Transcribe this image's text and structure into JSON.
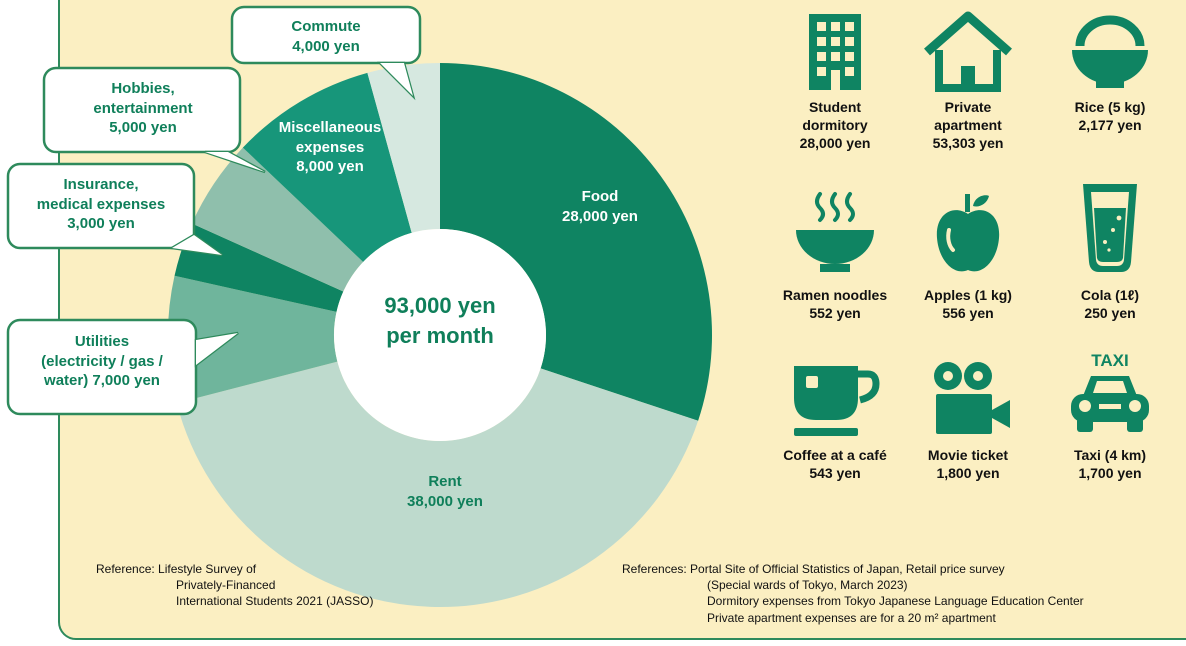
{
  "chart_data": {
    "type": "pie",
    "center_text": [
      "93,000 yen",
      "per month"
    ],
    "slices": [
      {
        "name": "Food",
        "value_label": "28,000 yen",
        "value": 28000,
        "color": "#0f8462"
      },
      {
        "name": "Rent",
        "value_label": "38,000 yen",
        "value": 38000,
        "color": "#bedacd"
      },
      {
        "name": "Utilities (electricity / gas / water)",
        "value_label": "7,000 yen",
        "value": 7000,
        "color": "#6fb59c"
      },
      {
        "name": "Insurance, medical expenses",
        "value_label": "3,000 yen",
        "value": 3000,
        "color": "#0f8462"
      },
      {
        "name": "Hobbies, entertainment",
        "value_label": "5,000 yen",
        "value": 5000,
        "color": "#8fbfac"
      },
      {
        "name": "Miscellaneous expenses",
        "value_label": "8,000 yen",
        "value": 8000,
        "color": "#17967a"
      },
      {
        "name": "Commute",
        "value_label": "4,000 yen",
        "value": 4000,
        "color": "#d6e8e0"
      }
    ]
  },
  "labels": {
    "food": [
      "Food",
      "28,000 yen"
    ],
    "rent": [
      "Rent",
      "38,000 yen"
    ],
    "misc": [
      "Miscellaneous",
      "expenses",
      "8,000 yen"
    ],
    "commute": [
      "Commute",
      "4,000 yen"
    ],
    "hobbies": [
      "Hobbies,",
      "entertainment",
      "5,000 yen"
    ],
    "insurance": [
      "Insurance,",
      "medical expenses",
      "3,000 yen"
    ],
    "utilities": [
      "Utilities",
      "(electricity / gas /",
      "water) 7,000 yen"
    ]
  },
  "prices": [
    {
      "icon": "building-icon",
      "lines": [
        "Student",
        "dormitory",
        "28,000 yen"
      ]
    },
    {
      "icon": "house-icon",
      "lines": [
        "Private",
        "apartment",
        "53,303 yen"
      ]
    },
    {
      "icon": "rice-bowl-icon",
      "lines": [
        "Rice (5 kg)",
        "2,177 yen"
      ]
    },
    {
      "icon": "ramen-bowl-icon",
      "lines": [
        "Ramen noodles",
        "552 yen"
      ]
    },
    {
      "icon": "apple-icon",
      "lines": [
        "Apples (1 kg)",
        "556 yen"
      ]
    },
    {
      "icon": "cola-glass-icon",
      "lines": [
        "Cola (1ℓ)",
        "250 yen"
      ]
    },
    {
      "icon": "coffee-cup-icon",
      "lines": [
        "Coffee at a café",
        "543 yen"
      ]
    },
    {
      "icon": "movie-camera-icon",
      "lines": [
        "Movie ticket",
        "1,800 yen"
      ]
    },
    {
      "icon": "taxi-icon",
      "lines": [
        "Taxi (4 km)",
        "1,700 yen"
      ]
    }
  ],
  "taxi_sign": "TAXI",
  "reference_left": [
    "Reference: Lifestyle Survey of",
    "Privately-Financed",
    "International Students 2021 (JASSO)"
  ],
  "reference_right": [
    "References: Portal Site of Official Statistics of Japan, Retail price survey",
    "(Special wards of Tokyo, March 2023)",
    "Dormitory expenses from Tokyo Japanese Language Education Center",
    "Private apartment expenses are for a 20 m² apartment"
  ],
  "colors": {
    "accent": "#0f8462",
    "panel": "#fbefc2",
    "callout_border": "#2e8a5c"
  }
}
